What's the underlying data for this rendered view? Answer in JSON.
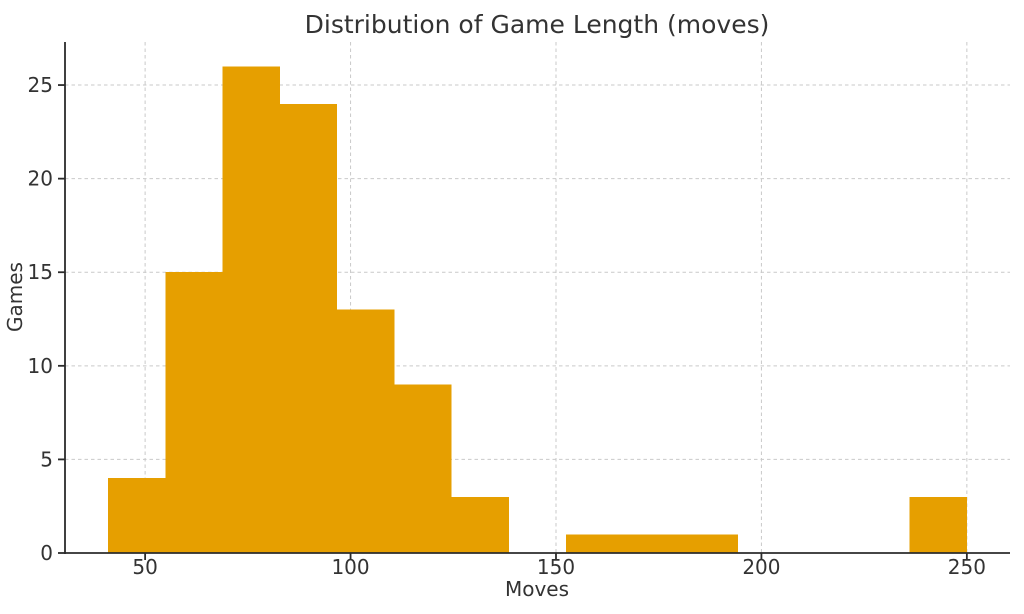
{
  "chart_data": {
    "type": "histogram",
    "title": "Distribution of Game Length (moves)",
    "xlabel": "Moves",
    "ylabel": "Games",
    "bin_edges": [
      41.0,
      54.93,
      68.87,
      82.8,
      96.73,
      110.67,
      124.6,
      138.53,
      152.47,
      166.4,
      180.33,
      194.27,
      208.2,
      222.13,
      236.07,
      250.0
    ],
    "counts": [
      4,
      15,
      26,
      24,
      13,
      9,
      3,
      0,
      1,
      1,
      1,
      0,
      0,
      0,
      3
    ],
    "xticks": [
      50,
      100,
      150,
      200,
      250
    ],
    "yticks": [
      0,
      5,
      10,
      15,
      20,
      25
    ],
    "xlim": [
      30.5,
      260.5
    ],
    "ylim": [
      0,
      27.3
    ],
    "grid": true,
    "grid_style": "dashed",
    "legend": null,
    "colors": {
      "bar": "#E69F00",
      "grid": "#c9c9c9",
      "axis": "#2b2b2b",
      "text": "#333333",
      "background": "#ffffff"
    }
  }
}
